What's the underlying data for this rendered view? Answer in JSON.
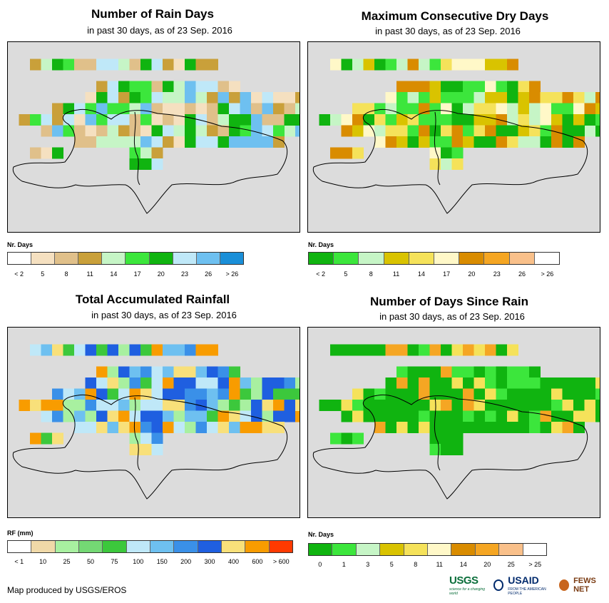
{
  "panels": [
    {
      "id": "rain-days",
      "title": "Number of Rain Days",
      "subtitle": "in past 30 days, as of 23 Sep. 2016",
      "legend_title": "Nr. Days",
      "legend_colors": [
        "#ffffff",
        "#f5e0c0",
        "#e0c08a",
        "#c9a03a",
        "#c6f5c6",
        "#3ce63c",
        "#10b410",
        "#bfe8f8",
        "#6ec0f0",
        "#1a8fd8"
      ],
      "legend_labels": [
        "< 2",
        "5",
        "8",
        "11",
        "14",
        "17",
        "20",
        "23",
        "26",
        "> 26"
      ],
      "grid_palette": [
        "#c9a03a",
        "#e0c08a",
        "#f5e0c0",
        "#c6f5c6",
        "#3ce63c",
        "#10b410",
        "#bfe8f8",
        "#6ec0f0"
      ]
    },
    {
      "id": "dry-days",
      "title": "Maximum Consecutive Dry Days",
      "subtitle": "in past 30 days, as of 23 Sep. 2016",
      "legend_title": "Nr. Days",
      "legend_colors": [
        "#10b410",
        "#3ce63c",
        "#c6f5c6",
        "#d9c300",
        "#f5e25a",
        "#fff8c8",
        "#d98c00",
        "#f5a623",
        "#f9c08a",
        "#ffffff"
      ],
      "legend_labels": [
        "< 2",
        "5",
        "8",
        "11",
        "14",
        "17",
        "20",
        "23",
        "26",
        "> 26"
      ],
      "grid_palette": [
        "#3ce63c",
        "#c6f5c6",
        "#10b410",
        "#d9c300",
        "#f5e25a",
        "#fff8c8",
        "#d98c00"
      ]
    },
    {
      "id": "rainfall",
      "title": "Total Accumulated Rainfall",
      "subtitle": "in past 30 days, as of 23 Sep. 2016",
      "legend_title": "RF (mm)",
      "legend_colors": [
        "#ffffff",
        "#f0d9a8",
        "#a8f0a0",
        "#74d874",
        "#3cc83c",
        "#bfe8f8",
        "#6ec0f0",
        "#3a90e8",
        "#1f5fe0",
        "#f8e07a",
        "#f89c00",
        "#ff3a00"
      ],
      "legend_labels": [
        "< 1",
        "10",
        "25",
        "50",
        "75",
        "100",
        "150",
        "200",
        "300",
        "400",
        "600",
        "> 600"
      ],
      "grid_palette": [
        "#1f5fe0",
        "#3a90e8",
        "#6ec0f0",
        "#bfe8f8",
        "#3cc83c",
        "#f8e07a",
        "#f89c00",
        "#a8f0a0"
      ]
    },
    {
      "id": "days-since-rain",
      "title": "Number of Days Since Rain",
      "subtitle": "in past 30 days, as of 23 Sep. 2016",
      "legend_title": "Nr. Days",
      "legend_colors": [
        "#10b410",
        "#3ce63c",
        "#c6f5c6",
        "#d9c300",
        "#f5e25a",
        "#fff8c8",
        "#d98c00",
        "#f5a623",
        "#f9c08a",
        "#ffffff"
      ],
      "legend_labels": [
        "0",
        "1",
        "3",
        "5",
        "8",
        "11",
        "14",
        "20",
        "25",
        "> 25"
      ],
      "grid_palette": [
        "#10b410",
        "#10b410",
        "#10b410",
        "#10b410",
        "#3ce63c",
        "#f5e25a",
        "#f5a623"
      ]
    }
  ],
  "footer": {
    "credit": "Map produced by USGS/EROS",
    "usgs": "USGS",
    "usgs_tag": "science for a changing world",
    "usaid": "USAID",
    "usaid_tag": "FROM THE AMERICAN PEOPLE",
    "fews": "FEWS NET"
  }
}
